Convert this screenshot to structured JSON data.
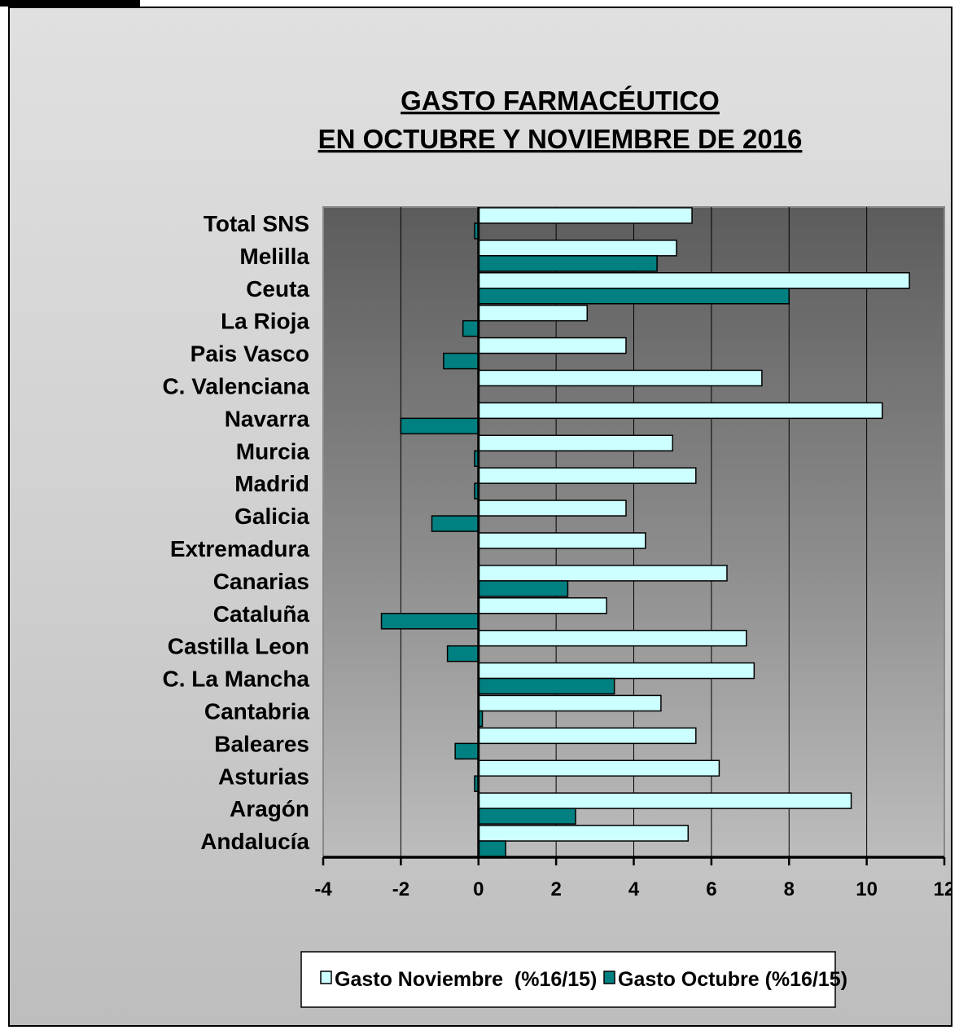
{
  "chart_data": {
    "type": "bar",
    "orientation": "horizontal",
    "title_lines": [
      "GASTO FARMACÉUTICO",
      "EN  OCTUBRE Y NOVIEMBRE DE 2016"
    ],
    "categories": [
      "Total SNS",
      "Melilla",
      "Ceuta",
      "La Rioja",
      "Pais Vasco",
      "C. Valenciana",
      "Navarra",
      "Murcia",
      "Madrid",
      "Galicia",
      "Extremadura",
      "Canarias",
      "Cataluña",
      "Castilla Leon",
      "C. La Mancha",
      "Cantabria",
      "Baleares",
      "Asturias",
      "Aragón",
      "Andalucía"
    ],
    "series": [
      {
        "name": "Gasto Noviembre  (%16/15)",
        "color": "#ccffff",
        "values": [
          5.5,
          5.1,
          11.1,
          2.8,
          3.8,
          7.3,
          10.4,
          5.0,
          5.6,
          3.8,
          4.3,
          6.4,
          3.3,
          6.9,
          7.1,
          4.7,
          5.6,
          6.2,
          9.6,
          5.4
        ]
      },
      {
        "name": "Gasto Octubre (%16/15)",
        "color": "#008080",
        "values": [
          -0.1,
          4.6,
          8.0,
          -0.4,
          -0.9,
          0.0,
          -2.0,
          -0.1,
          -0.1,
          -1.2,
          0.0,
          2.3,
          -2.5,
          -0.8,
          3.5,
          0.1,
          -0.6,
          -0.1,
          2.5,
          0.7
        ]
      }
    ],
    "xlim": [
      -4,
      12
    ],
    "xticks": [
      -4,
      -2,
      0,
      2,
      4,
      6,
      8,
      10,
      12
    ],
    "grid": true,
    "legend_position": "bottom-center",
    "plot_background": "#5a5a5a"
  }
}
